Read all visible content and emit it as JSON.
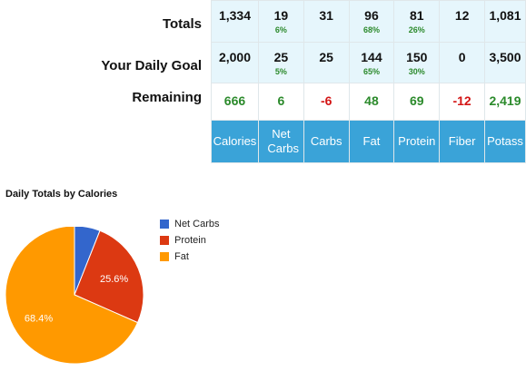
{
  "rows": {
    "totals_label": "Totals",
    "goal_label": "Your Daily Goal",
    "remaining_label": "Remaining"
  },
  "columns": [
    {
      "header": "Calories",
      "total": "1,334",
      "total_pct": "",
      "goal": "2,000",
      "goal_pct": "",
      "remaining": "666",
      "remaining_negative": false
    },
    {
      "header": "Net Carbs",
      "total": "19",
      "total_pct": "6%",
      "goal": "25",
      "goal_pct": "5%",
      "remaining": "6",
      "remaining_negative": false
    },
    {
      "header": "Carbs",
      "total": "31",
      "total_pct": "",
      "goal": "25",
      "goal_pct": "",
      "remaining": "-6",
      "remaining_negative": true
    },
    {
      "header": "Fat",
      "total": "96",
      "total_pct": "68%",
      "goal": "144",
      "goal_pct": "65%",
      "remaining": "48",
      "remaining_negative": false
    },
    {
      "header": "Protein",
      "total": "81",
      "total_pct": "26%",
      "goal": "150",
      "goal_pct": "30%",
      "remaining": "69",
      "remaining_negative": false
    },
    {
      "header": "Fiber",
      "total": "12",
      "total_pct": "",
      "goal": "0",
      "goal_pct": "",
      "remaining": "-12",
      "remaining_negative": true
    },
    {
      "header": "Potass",
      "total": "1,081",
      "total_pct": "",
      "goal": "3,500",
      "goal_pct": "",
      "remaining": "2,419",
      "remaining_negative": false
    }
  ],
  "colors": {
    "header_bg": "#3aa3d8",
    "cell_bg": "#e6f6fc",
    "positive": "#2b8a2b",
    "negative": "#d31414"
  },
  "chart_data": {
    "type": "pie",
    "title": "Daily Totals by Calories",
    "legend_position": "right",
    "slices": [
      {
        "name": "Net Carbs",
        "value": 6.0,
        "label": "",
        "color": "#3366cc"
      },
      {
        "name": "Protein",
        "value": 25.6,
        "label": "25.6%",
        "color": "#dc3912"
      },
      {
        "name": "Fat",
        "value": 68.4,
        "label": "68.4%",
        "color": "#ff9900"
      }
    ]
  }
}
